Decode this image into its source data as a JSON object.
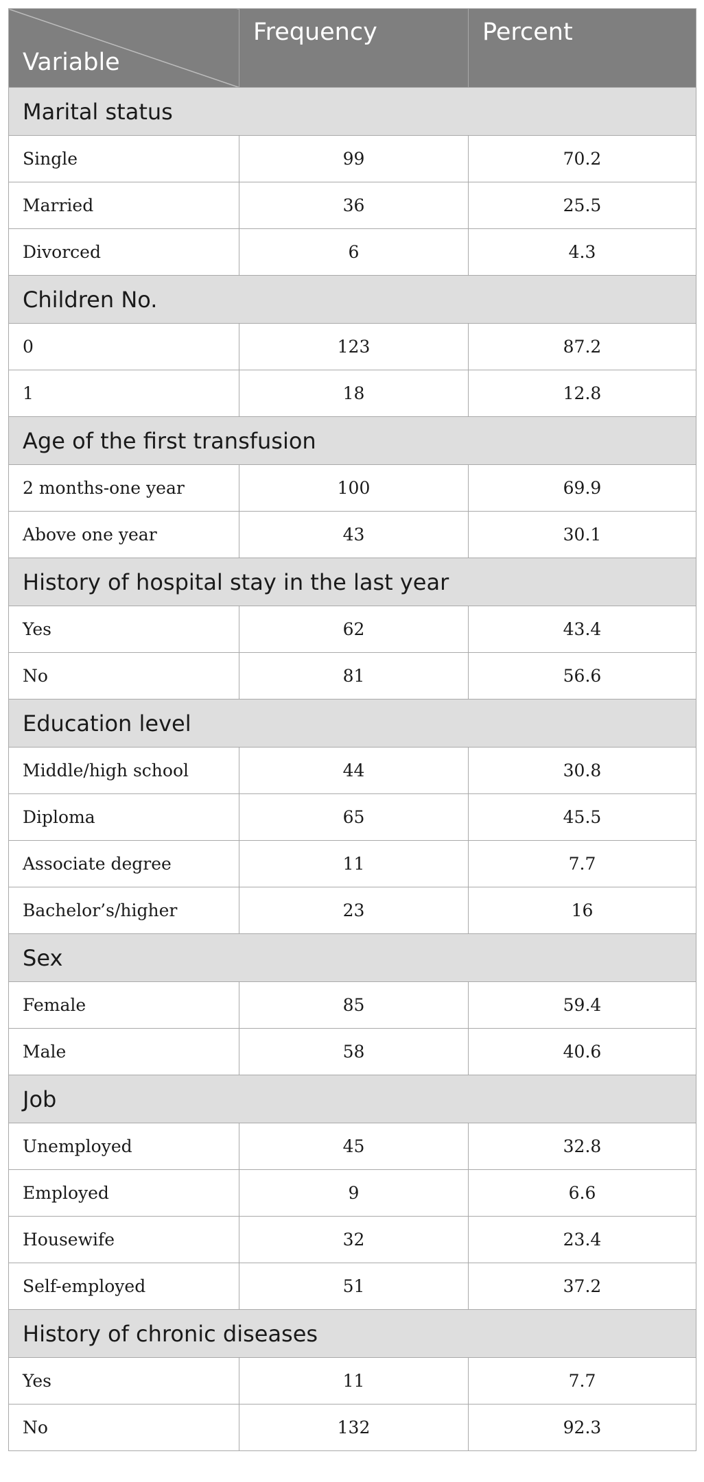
{
  "header": {
    "variable": "Variable",
    "frequency": "Frequency",
    "percent": "Percent"
  },
  "groups": [
    {
      "title": "Marital status",
      "rows": [
        {
          "label": "Single",
          "frequency": "99",
          "percent": "70.2"
        },
        {
          "label": "Married",
          "frequency": "36",
          "percent": "25.5"
        },
        {
          "label": "Divorced",
          "frequency": "6",
          "percent": "4.3"
        }
      ]
    },
    {
      "title": "Children No.",
      "rows": [
        {
          "label": "0",
          "frequency": "123",
          "percent": "87.2"
        },
        {
          "label": "1",
          "frequency": "18",
          "percent": "12.8"
        }
      ]
    },
    {
      "title": "Age of the first transfusion",
      "rows": [
        {
          "label": "2 months-one year",
          "frequency": "100",
          "percent": "69.9"
        },
        {
          "label": "Above one year",
          "frequency": "43",
          "percent": "30.1"
        }
      ]
    },
    {
      "title": "History of hospital stay in the last year",
      "rows": [
        {
          "label": "Yes",
          "frequency": "62",
          "percent": "43.4"
        },
        {
          "label": "No",
          "frequency": "81",
          "percent": "56.6"
        }
      ]
    },
    {
      "title": "Education level",
      "rows": [
        {
          "label": "Middle/high school",
          "frequency": "44",
          "percent": "30.8"
        },
        {
          "label": "Diploma",
          "frequency": "65",
          "percent": "45.5"
        },
        {
          "label": "Associate degree",
          "frequency": "11",
          "percent": "7.7"
        },
        {
          "label": "Bachelor’s/higher",
          "frequency": "23",
          "percent": "16"
        }
      ]
    },
    {
      "title": "Sex",
      "rows": [
        {
          "label": "Female",
          "frequency": "85",
          "percent": "59.4"
        },
        {
          "label": "Male",
          "frequency": "58",
          "percent": "40.6"
        }
      ]
    },
    {
      "title": "Job",
      "rows": [
        {
          "label": "Unemployed",
          "frequency": "45",
          "percent": "32.8"
        },
        {
          "label": "Employed",
          "frequency": "9",
          "percent": "6.6"
        },
        {
          "label": "Housewife",
          "frequency": "32",
          "percent": "23.4"
        },
        {
          "label": "Self-employed",
          "frequency": "51",
          "percent": "37.2"
        }
      ]
    },
    {
      "title": "History of chronic diseases",
      "rows": [
        {
          "label": "Yes",
          "frequency": "11",
          "percent": "7.7"
        },
        {
          "label": "No",
          "frequency": "132",
          "percent": "92.3"
        }
      ]
    }
  ]
}
